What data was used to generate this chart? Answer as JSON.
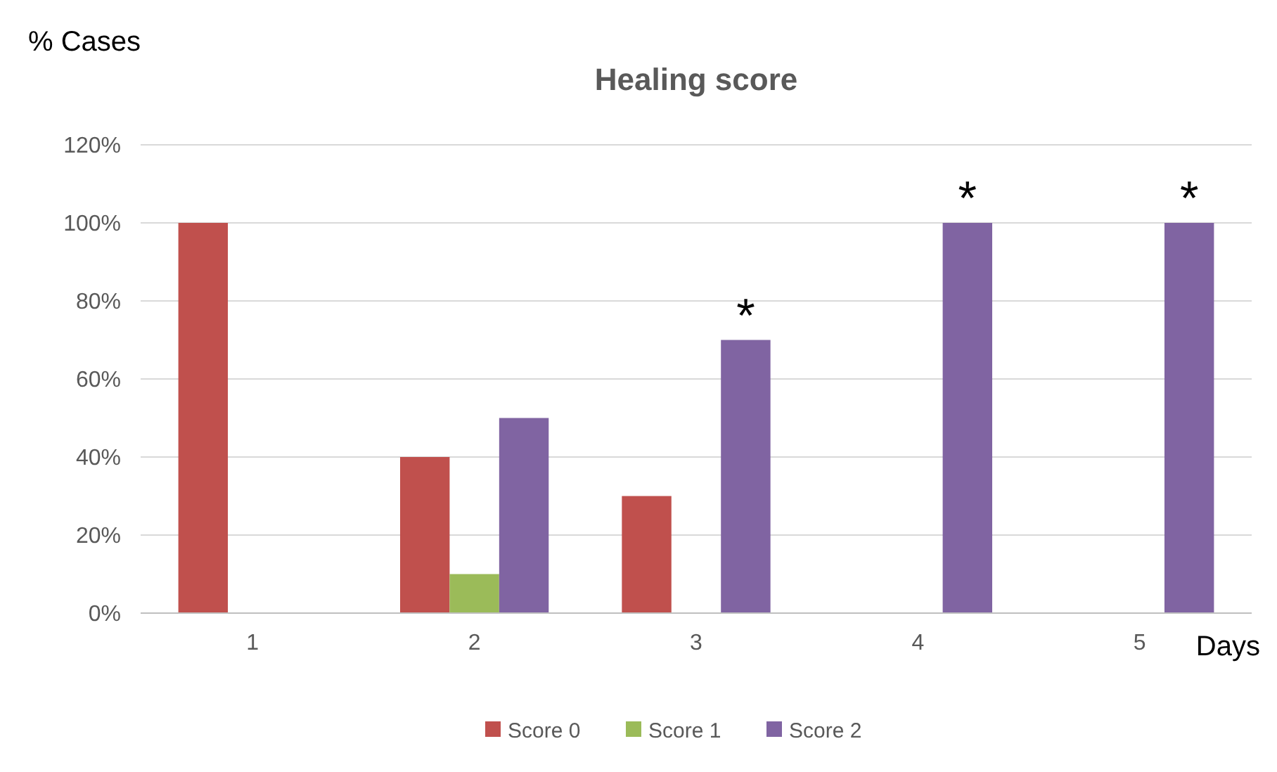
{
  "chart_data": {
    "type": "bar",
    "title": "Healing score",
    "ylabel": "% Cases",
    "xlabel": "Days",
    "categories": [
      "1",
      "2",
      "3",
      "4",
      "5"
    ],
    "series": [
      {
        "name": "Score 0",
        "color": "#c0504d",
        "values": [
          100,
          40,
          30,
          0,
          0
        ]
      },
      {
        "name": "Score 1",
        "color": "#9bbb59",
        "values": [
          0,
          10,
          0,
          0,
          0
        ]
      },
      {
        "name": "Score 2",
        "color": "#8064a2",
        "values": [
          0,
          50,
          70,
          100,
          100
        ]
      }
    ],
    "ylim": [
      0,
      120
    ],
    "yticks": [
      {
        "value": 0,
        "label": "0%"
      },
      {
        "value": 20,
        "label": "20%"
      },
      {
        "value": 40,
        "label": "40%"
      },
      {
        "value": 60,
        "label": "60%"
      },
      {
        "value": 80,
        "label": "80%"
      },
      {
        "value": 100,
        "label": "100%"
      },
      {
        "value": 120,
        "label": "120%"
      }
    ],
    "grid": "y",
    "legend": "bottom",
    "annotations": [
      "*",
      "*",
      "*"
    ]
  }
}
